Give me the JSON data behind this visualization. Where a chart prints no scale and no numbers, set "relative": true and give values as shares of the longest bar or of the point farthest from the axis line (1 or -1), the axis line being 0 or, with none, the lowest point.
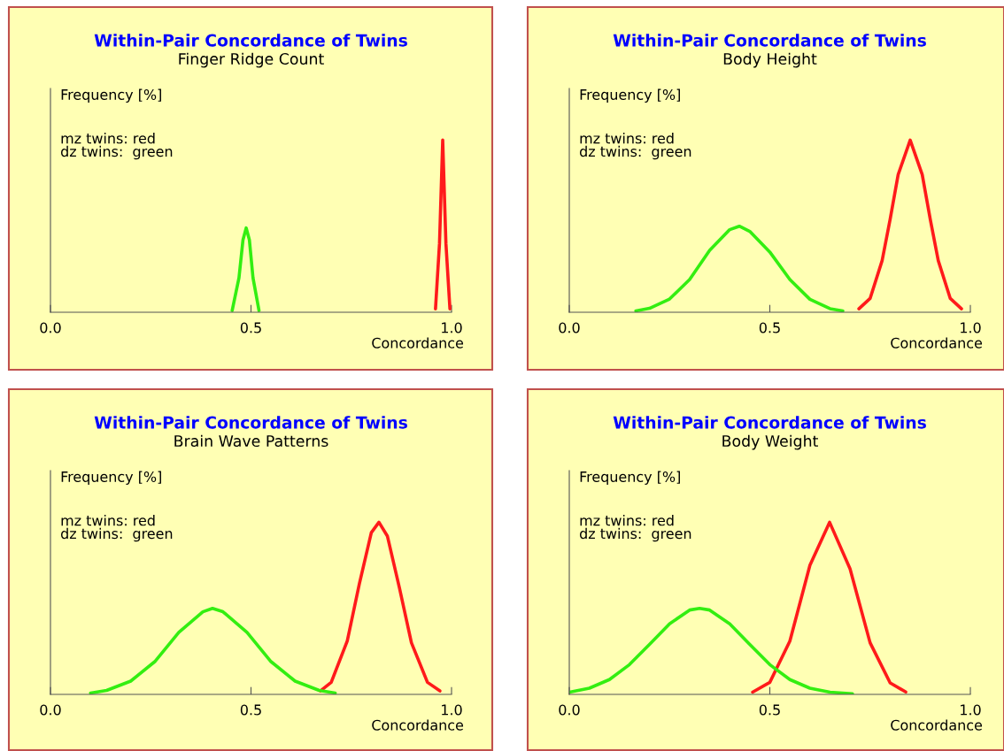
{
  "chart_data": [
    {
      "type": "line",
      "title": "Within-Pair Concordance of Twins",
      "subtitle": "Finger Ridge Count",
      "ylabel": "Frequency [%]",
      "xlabel": "Concordance",
      "annotations": [
        "mz twins: red\ndz twins:  green"
      ],
      "relative": true,
      "xlim": [
        0,
        1
      ],
      "xticks": [
        {
          "value": 0,
          "label": "0.0"
        },
        {
          "value": 0.5,
          "label": "0.5"
        },
        {
          "value": 1,
          "label": "1.0"
        }
      ],
      "series": [
        {
          "color": "#ff1a1a",
          "x": [
            0.96,
            0.97,
            0.978,
            0.986,
            0.996
          ],
          "values": [
            0.02,
            0.4,
            1,
            0.4,
            0.02
          ]
        },
        {
          "color": "#33ee11",
          "x": [
            0.453,
            0.47,
            0.48,
            0.488,
            0.496,
            0.505,
            0.52
          ],
          "values": [
            0.01,
            0.2,
            0.42,
            0.49,
            0.42,
            0.2,
            0.01
          ]
        }
      ]
    },
    {
      "type": "line",
      "title": "Within-Pair Concordance of Twins",
      "subtitle": "Body Height",
      "ylabel": "Frequency [%]",
      "xlabel": "Concordance",
      "annotations": [
        "mz twins: red\ndz twins:  green"
      ],
      "relative": true,
      "xlim": [
        0,
        1
      ],
      "xticks": [
        {
          "value": 0,
          "label": "0.0"
        },
        {
          "value": 0.5,
          "label": "0.5"
        },
        {
          "value": 1,
          "label": "1.0"
        }
      ],
      "series": [
        {
          "color": "#ff1a1a",
          "x": [
            0.722,
            0.75,
            0.78,
            0.8,
            0.82,
            0.85,
            0.88,
            0.9,
            0.92,
            0.95,
            0.978
          ],
          "values": [
            0.02,
            0.08,
            0.3,
            0.54,
            0.8,
            1,
            0.8,
            0.54,
            0.3,
            0.08,
            0.02
          ]
        },
        {
          "color": "#33ee11",
          "x": [
            0.166,
            0.2,
            0.25,
            0.3,
            0.35,
            0.4,
            0.424,
            0.45,
            0.5,
            0.55,
            0.6,
            0.65,
            0.682
          ],
          "values": [
            0.008,
            0.023,
            0.077,
            0.19,
            0.36,
            0.48,
            0.5,
            0.47,
            0.35,
            0.19,
            0.075,
            0.021,
            0.008
          ]
        }
      ]
    },
    {
      "type": "line",
      "title": "Within-Pair Concordance of Twins",
      "subtitle": "Brain Wave Patterns",
      "ylabel": "Frequency [%]",
      "xlabel": "Concordance",
      "annotations": [
        "mz twins: red\ndz twins:  green"
      ],
      "relative": true,
      "xlim": [
        0,
        1
      ],
      "xticks": [
        {
          "value": 0,
          "label": "0.0"
        },
        {
          "value": 0.5,
          "label": "0.5"
        },
        {
          "value": 1,
          "label": "1.0"
        }
      ],
      "series": [
        {
          "color": "#ff1a1a",
          "x": [
            0.673,
            0.7,
            0.74,
            0.77,
            0.8,
            0.819,
            0.84,
            0.87,
            0.9,
            0.94,
            0.971
          ],
          "values": [
            0.02,
            0.07,
            0.31,
            0.64,
            0.94,
            1,
            0.92,
            0.62,
            0.3,
            0.07,
            0.02
          ]
        },
        {
          "color": "#33ee11",
          "x": [
            0.1,
            0.14,
            0.2,
            0.26,
            0.32,
            0.38,
            0.404,
            0.43,
            0.49,
            0.55,
            0.61,
            0.67,
            0.71
          ],
          "values": [
            0.008,
            0.023,
            0.077,
            0.19,
            0.36,
            0.48,
            0.5,
            0.48,
            0.36,
            0.19,
            0.077,
            0.023,
            0.008
          ]
        }
      ]
    },
    {
      "type": "line",
      "title": "Within-Pair Concordance of Twins",
      "subtitle": "Body Weight",
      "ylabel": "Frequency [%]",
      "xlabel": "Concordance",
      "annotations": [
        "mz twins: red\ndz twins:  green"
      ],
      "relative": true,
      "xlim": [
        0,
        1
      ],
      "xticks": [
        {
          "value": 0,
          "label": "0.0"
        },
        {
          "value": 0.5,
          "label": "0.5"
        },
        {
          "value": 1,
          "label": "1.0"
        }
      ],
      "series": [
        {
          "color": "#ff1a1a",
          "x": [
            0.457,
            0.5,
            0.55,
            0.6,
            0.649,
            0.7,
            0.75,
            0.8,
            0.839
          ],
          "values": [
            0.013,
            0.07,
            0.31,
            0.75,
            1,
            0.73,
            0.3,
            0.067,
            0.014
          ]
        },
        {
          "color": "#33ee11",
          "x": [
            0,
            0.05,
            0.1,
            0.15,
            0.2,
            0.25,
            0.3,
            0.325,
            0.35,
            0.4,
            0.45,
            0.5,
            0.55,
            0.6,
            0.65,
            0.706
          ],
          "values": [
            0.013,
            0.036,
            0.086,
            0.173,
            0.29,
            0.41,
            0.49,
            0.5,
            0.49,
            0.41,
            0.29,
            0.173,
            0.086,
            0.036,
            0.013,
            0.003
          ]
        }
      ]
    }
  ]
}
